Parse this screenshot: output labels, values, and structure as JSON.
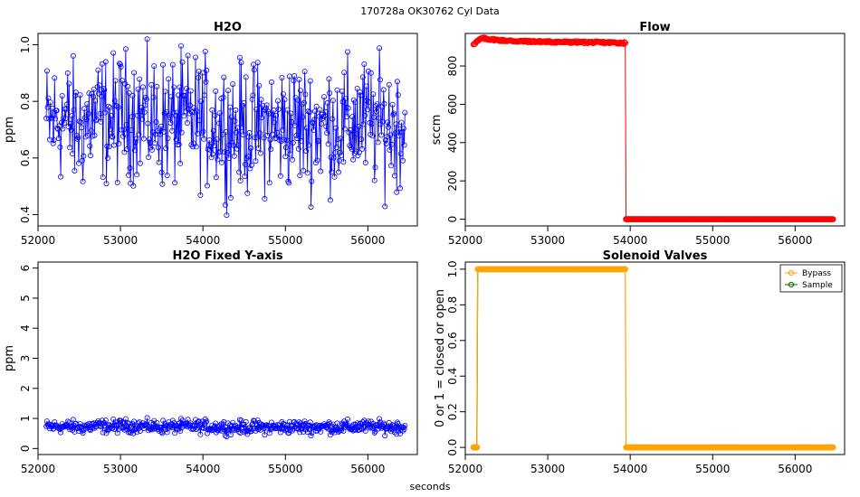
{
  "figure": {
    "title": "170728a    OK30762   Cyl Data",
    "xlabel": "seconds"
  },
  "colors": {
    "h2o": "#0000ff",
    "flow": "#ff0000",
    "bypass": "#ffa500",
    "sample": "#006400"
  },
  "chart_data": [
    {
      "type": "line",
      "title": "H2O",
      "xlabel": "",
      "ylabel": "ppm",
      "xlim": [
        52000,
        56600
      ],
      "ylim": [
        0.36,
        1.04
      ],
      "xticks": [
        "52000",
        "53000",
        "54000",
        "55000",
        "56000"
      ],
      "yticks": [
        "0.4",
        "0.6",
        "0.8",
        "1.0"
      ],
      "series": [
        {
          "description": "noisy water signal, open circles joined by lines, ~4400 samples, mean about 0.72 ppm, range about 0.37-1.02 ppm",
          "x": [
            52100,
            52300,
            52500,
            52700,
            52900,
            53100,
            53300,
            53500,
            53700,
            53900,
            54100,
            54300,
            54500,
            54700,
            54900,
            55100,
            55300,
            55500,
            55700,
            55900,
            56100,
            56300,
            56450
          ],
          "values": [
            0.72,
            0.74,
            0.7,
            0.75,
            0.73,
            0.76,
            0.74,
            0.72,
            0.73,
            0.74,
            0.72,
            0.71,
            0.7,
            0.71,
            0.7,
            0.72,
            0.71,
            0.72,
            0.71,
            0.73,
            0.72,
            0.71,
            0.72
          ],
          "min": 0.37,
          "max": 1.02
        }
      ]
    },
    {
      "type": "line",
      "title": "Flow",
      "xlabel": "",
      "ylabel": "sccm",
      "xlim": [
        52000,
        56600
      ],
      "ylim": [
        -35,
        970
      ],
      "xticks": [
        "52000",
        "53000",
        "54000",
        "55000",
        "56000"
      ],
      "yticks": [
        "0",
        "200",
        "400",
        "600",
        "800"
      ],
      "series": [
        {
          "description": "flow near 920-945 sccm until about 53950 s, then drops to 0",
          "x": [
            52100,
            52150,
            52200,
            52400,
            52600,
            52800,
            53000,
            53200,
            53400,
            53600,
            53800,
            53940,
            53950,
            54200,
            54600,
            55000,
            55400,
            55800,
            56200,
            56460
          ],
          "values": [
            915,
            930,
            945,
            935,
            930,
            928,
            926,
            925,
            924,
            923,
            922,
            920,
            0,
            0,
            0,
            0,
            0,
            0,
            0,
            0
          ]
        }
      ]
    },
    {
      "type": "line",
      "title": "H2O Fixed Y-axis",
      "xlabel": "",
      "ylabel": "ppm",
      "xlim": [
        52000,
        56600
      ],
      "ylim": [
        -0.2,
        6.2
      ],
      "xticks": [
        "52000",
        "53000",
        "54000",
        "55000",
        "56000"
      ],
      "yticks": [
        "0",
        "1",
        "2",
        "3",
        "4",
        "5",
        "6"
      ],
      "series": [
        {
          "description": "same water signal on fixed 0-6 ppm axis, appears flat near 0.7",
          "x": [
            52100,
            52300,
            52500,
            52700,
            52900,
            53100,
            53300,
            53500,
            53700,
            53900,
            54100,
            54300,
            54500,
            54700,
            54900,
            55100,
            55300,
            55500,
            55700,
            55900,
            56100,
            56300,
            56450
          ],
          "values": [
            0.72,
            0.74,
            0.7,
            0.75,
            0.73,
            0.76,
            0.74,
            0.72,
            0.73,
            0.74,
            0.72,
            0.71,
            0.7,
            0.71,
            0.7,
            0.72,
            0.71,
            0.72,
            0.71,
            0.73,
            0.72,
            0.71,
            0.72
          ]
        }
      ]
    },
    {
      "type": "line",
      "title": "Solenoid Valves",
      "xlabel": "",
      "ylabel": "0 or 1 = closed or open",
      "xlim": [
        52000,
        56600
      ],
      "ylim": [
        -0.04,
        1.04
      ],
      "xticks": [
        "52000",
        "53000",
        "54000",
        "55000",
        "56000"
      ],
      "yticks": [
        "0.0",
        "0.2",
        "0.4",
        "0.6",
        "0.8",
        "1.0"
      ],
      "legend": "top-right",
      "series": [
        {
          "name": "Bypass",
          "x": [
            52100,
            52140,
            52150,
            53940,
            53950,
            56460
          ],
          "values": [
            0,
            0,
            1,
            1,
            0,
            0
          ]
        },
        {
          "name": "Sample",
          "x": [
            52100,
            52140,
            52150
          ],
          "values": [
            0,
            0,
            1
          ]
        }
      ]
    }
  ]
}
